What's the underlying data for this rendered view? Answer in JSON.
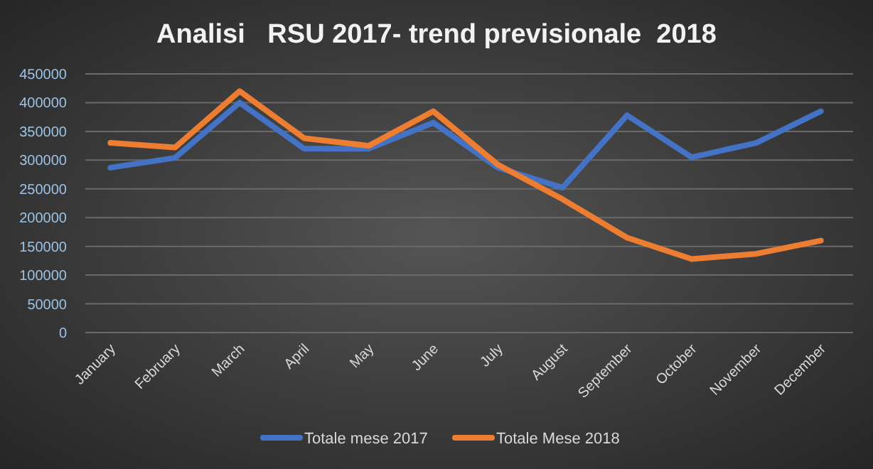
{
  "chart_data": {
    "type": "line",
    "title": "Analisi   RSU 2017- trend previsionale  2018",
    "categories": [
      "January",
      "February",
      "March",
      "April",
      "May",
      "June",
      "July",
      "August",
      "September",
      "October",
      "November",
      "December"
    ],
    "series": [
      {
        "name": "Totale mese 2017",
        "color": "#4472c4",
        "values": [
          287000,
          304000,
          400000,
          320000,
          320000,
          365000,
          287000,
          252000,
          378000,
          305000,
          330000,
          385000
        ]
      },
      {
        "name": "Totale Mese 2018",
        "color": "#ed7d31",
        "values": [
          330000,
          322000,
          420000,
          338000,
          325000,
          385000,
          292000,
          232000,
          165000,
          128000,
          137000,
          160000
        ]
      }
    ],
    "ylim": [
      0,
      450000
    ],
    "yticks": [
      0,
      50000,
      100000,
      150000,
      200000,
      250000,
      300000,
      350000,
      400000,
      450000
    ],
    "grid": "y",
    "legend": "bottom",
    "marker": "none",
    "line_style": "solid"
  }
}
